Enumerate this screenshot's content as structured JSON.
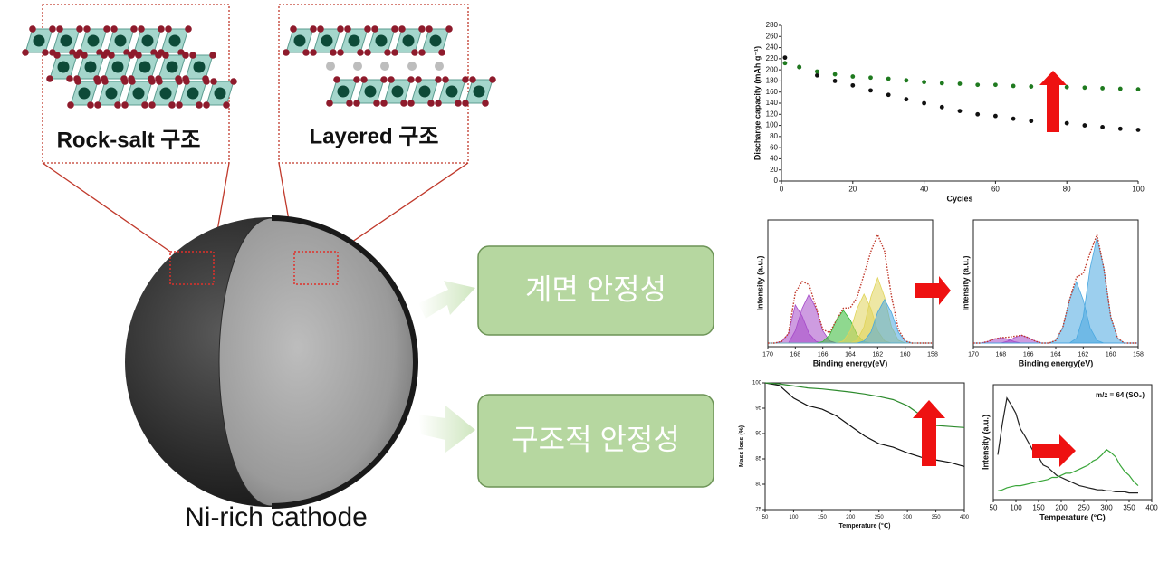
{
  "structures": [
    {
      "label": "Rock-salt 구조"
    },
    {
      "label": "Layered 구조"
    }
  ],
  "particle_label": "Ni-rich cathode",
  "effects": [
    "계면 안정성",
    "구조적 안정성"
  ],
  "chart_data": [
    {
      "type": "scatter",
      "xlabel": "Cycles",
      "ylabel": "Discharge capacity (mAh g⁻¹)",
      "xlim": [
        0,
        100
      ],
      "xticks": [
        0,
        20,
        40,
        60,
        80,
        100
      ],
      "ylim": [
        0,
        280
      ],
      "yticks": [
        0,
        20,
        40,
        60,
        80,
        100,
        120,
        140,
        160,
        180,
        200,
        220,
        240,
        260,
        280
      ],
      "x": [
        1,
        5,
        10,
        15,
        20,
        25,
        30,
        35,
        40,
        45,
        50,
        55,
        60,
        65,
        70,
        75,
        80,
        85,
        90,
        95,
        100
      ],
      "series": [
        {
          "color": "#111111",
          "values": [
            222,
            205,
            190,
            180,
            172,
            163,
            155,
            147,
            140,
            133,
            126,
            120,
            117,
            112,
            108,
            106,
            104,
            100,
            97,
            94,
            92
          ]
        },
        {
          "color": "#1f7a1f",
          "values": [
            212,
            205,
            197,
            192,
            188,
            186,
            184,
            181,
            178,
            176,
            175,
            173,
            173,
            171,
            170,
            170,
            169,
            168,
            167,
            166,
            165
          ]
        }
      ]
    },
    {
      "type": "area",
      "xlabel": "Binding energy(eV)",
      "ylabel": "Intensity (a.u.)",
      "xlim": [
        170,
        158
      ],
      "xticks": [
        170,
        168,
        166,
        164,
        162,
        160,
        158
      ],
      "x": [
        170,
        169.5,
        169,
        168.5,
        168,
        167.5,
        167,
        166.5,
        166,
        165.5,
        165,
        164.5,
        164,
        163.5,
        163,
        162.5,
        162,
        161.5,
        161,
        160.5,
        160,
        159.5,
        159,
        158.5,
        158
      ],
      "series": [
        {
          "color": "#a64ac9",
          "values": [
            0,
            0,
            1.5,
            8.7,
            35,
            24.7,
            8.7,
            1.5,
            0,
            0,
            0,
            0,
            0,
            0,
            0,
            0,
            0,
            0,
            0,
            0,
            0,
            0,
            0,
            0,
            0
          ]
        },
        {
          "color": "#a64ac9",
          "values": [
            0,
            0,
            0,
            0,
            11.2,
            31.8,
            45,
            31.8,
            11.2,
            2,
            0,
            0,
            0,
            0,
            0,
            0,
            0,
            0,
            0,
            0,
            0,
            0,
            0,
            0,
            0
          ]
        },
        {
          "color": "#33b833",
          "values": [
            0,
            0,
            0,
            0,
            0,
            0,
            0,
            0,
            1.3,
            7.5,
            21.2,
            30,
            21.2,
            7.5,
            1.3,
            0,
            0,
            0,
            0,
            0,
            0,
            0,
            0,
            0,
            0
          ]
        },
        {
          "color": "#e0d45a",
          "values": [
            0,
            0,
            0,
            0,
            0,
            0,
            0,
            0,
            0,
            0,
            0,
            2,
            11.2,
            31.8,
            45,
            31.8,
            11.2,
            2,
            0,
            0,
            0,
            0,
            0,
            0,
            0
          ]
        },
        {
          "color": "#e0d45a",
          "values": [
            0,
            0,
            0,
            0,
            0,
            0,
            0,
            0,
            0,
            0,
            0,
            0,
            0,
            2.6,
            14.9,
            42.4,
            60,
            42.4,
            14.9,
            2.6,
            0,
            0,
            0,
            0,
            0
          ]
        },
        {
          "color": "#4aa8e0",
          "values": [
            0,
            0,
            0,
            0,
            0,
            0,
            0,
            0,
            0,
            0,
            0,
            0,
            0,
            0,
            1.8,
            10,
            28.3,
            40,
            28.3,
            10,
            1.8,
            0,
            0,
            0,
            0
          ]
        },
        {
          "color": "#c0392b",
          "marker": true,
          "values": [
            0,
            0,
            1.5,
            8.7,
            46.2,
            56.5,
            53.7,
            33.3,
            12.5,
            9.5,
            21.2,
            32,
            32.4,
            41.9,
            63,
            84.2,
            99.5,
            84.4,
            43.2,
            12.6,
            1.8,
            0,
            0,
            0,
            0
          ]
        }
      ]
    },
    {
      "type": "area",
      "xlabel": "Binding energy(eV)",
      "ylabel": "Intensity (a.u.)",
      "xlim": [
        170,
        158
      ],
      "xticks": [
        170,
        168,
        166,
        164,
        162,
        160,
        158
      ],
      "x": [
        170,
        169.5,
        169,
        168.5,
        168,
        167.5,
        167,
        166.5,
        166,
        165.5,
        165,
        164.5,
        164,
        163.5,
        163,
        162.5,
        162,
        161.5,
        161,
        160.5,
        160,
        159.5,
        159,
        158.5,
        158
      ],
      "series": [
        {
          "color": "#a64ac9",
          "values": [
            0,
            0,
            1.2,
            3.5,
            5,
            3.5,
            1.2,
            0,
            0,
            0,
            0,
            0,
            0,
            0,
            0,
            0,
            0,
            0,
            0,
            0,
            0,
            0,
            0,
            0,
            0
          ]
        },
        {
          "color": "#a64ac9",
          "values": [
            0,
            0,
            0,
            0,
            0,
            1.7,
            4.9,
            7,
            4.9,
            1.7,
            0,
            0,
            0,
            0,
            0,
            0,
            0,
            0,
            0,
            0,
            0,
            0,
            0,
            0,
            0
          ]
        },
        {
          "color": "#4aa8e0",
          "values": [
            0,
            0,
            0,
            0,
            0,
            0,
            0,
            0,
            0,
            0,
            0,
            0,
            2.4,
            13.7,
            38.9,
            55,
            38.9,
            13.7,
            2.4,
            0,
            0,
            0,
            0,
            0,
            0
          ]
        },
        {
          "color": "#4aa8e0",
          "values": [
            0,
            0,
            0,
            0,
            0,
            0,
            0,
            0,
            0,
            0,
            0,
            0,
            0,
            0,
            0,
            4.2,
            23.7,
            67.2,
            95,
            67.2,
            23.7,
            4.2,
            0,
            0,
            0
          ]
        },
        {
          "color": "#c0392b",
          "marker": true,
          "values": [
            0,
            0,
            1.2,
            3.5,
            5,
            5.2,
            6.1,
            7,
            4.9,
            1.7,
            0,
            0,
            2.4,
            13.7,
            38.9,
            59.2,
            62.6,
            80.9,
            97.4,
            67.2,
            23.7,
            4.2,
            0,
            0,
            0
          ]
        }
      ]
    },
    {
      "type": "line",
      "xlabel": "Temperature (℃)",
      "ylabel": "Mass loss (%)",
      "xlim": [
        50,
        400
      ],
      "xticks": [
        50,
        100,
        150,
        200,
        250,
        300,
        350,
        400
      ],
      "ylim": [
        75,
        100
      ],
      "yticks": [
        75,
        80,
        85,
        90,
        95,
        100
      ],
      "x": [
        50,
        75,
        100,
        125,
        150,
        175,
        200,
        225,
        250,
        275,
        300,
        325,
        350,
        375,
        400
      ],
      "series": [
        {
          "color": "#111111",
          "values": [
            100,
            99.5,
            97,
            95.5,
            94.8,
            93.5,
            91.5,
            89.5,
            88,
            87.3,
            86.2,
            85.3,
            84.8,
            84.3,
            83.5
          ]
        },
        {
          "color": "#2e8b2e",
          "values": [
            100,
            99.8,
            99.4,
            99,
            98.8,
            98.5,
            98.2,
            97.8,
            97.3,
            96.7,
            95.5,
            93.5,
            91.6,
            91.4,
            91.2
          ]
        }
      ]
    },
    {
      "type": "line",
      "xlabel": "Temperature (°C)",
      "ylabel": "Intensity (a.u.)",
      "annotation": "m/z = 64 (SO₂)",
      "xlim": [
        50,
        400
      ],
      "xticks": [
        50,
        100,
        150,
        200,
        250,
        300,
        350,
        400
      ],
      "x": [
        60,
        70,
        80,
        90,
        100,
        110,
        120,
        130,
        140,
        150,
        160,
        170,
        180,
        190,
        200,
        210,
        220,
        230,
        240,
        250,
        260,
        270,
        280,
        290,
        300,
        310,
        320,
        330,
        340,
        350,
        360,
        370
      ],
      "series": [
        {
          "color": "#222222",
          "values": [
            40,
            70,
            95,
            88,
            80,
            65,
            58,
            50,
            42,
            38,
            30,
            28,
            24,
            20,
            18,
            16,
            14,
            12,
            10,
            9,
            8,
            7,
            6,
            6,
            5,
            5,
            4,
            4,
            4,
            3,
            3,
            3
          ]
        },
        {
          "color": "#3aa63a",
          "values": [
            5,
            6,
            8,
            9,
            10,
            10,
            11,
            12,
            13,
            14,
            15,
            16,
            18,
            18,
            20,
            22,
            22,
            24,
            26,
            28,
            30,
            34,
            36,
            40,
            45,
            42,
            38,
            30,
            24,
            20,
            14,
            10
          ]
        }
      ]
    }
  ]
}
